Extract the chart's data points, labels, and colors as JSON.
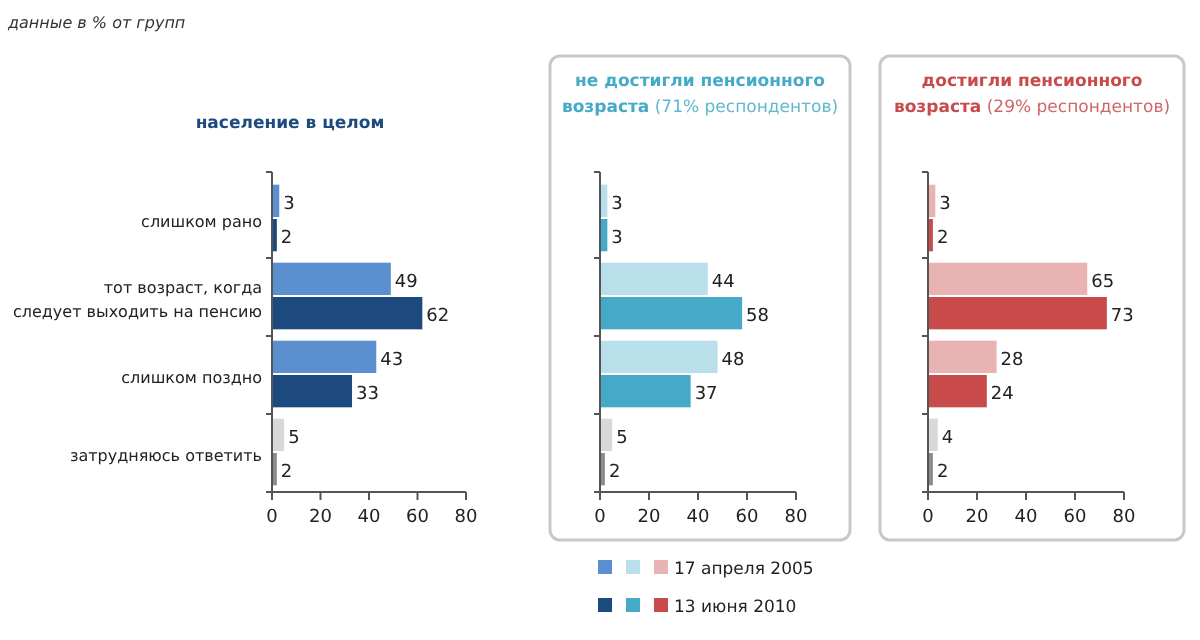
{
  "chart_data": [
    {
      "type": "bar",
      "orientation": "horizontal",
      "title": "население в целом",
      "annotations": [
        "данные в % от групп"
      ],
      "categories": [
        "слишком рано",
        "тот возраст, когда следует выходить на пенсию",
        "слишком поздно",
        "затрудняюсь ответить"
      ],
      "xlim": [
        0,
        80
      ],
      "xticks": [
        0,
        20,
        40,
        60,
        80
      ],
      "data_labels": true,
      "legend": false,
      "series": [
        {
          "colors": [
            "#5b8fd0",
            "#5b8fd0",
            "#5b8fd0",
            "#d9d9d9"
          ],
          "values": [
            3,
            49,
            43,
            5
          ]
        },
        {
          "colors": [
            "#1c4a7e",
            "#1c4a7e",
            "#1c4a7e",
            "#8c8c8c"
          ],
          "values": [
            2,
            62,
            33,
            2
          ]
        }
      ]
    },
    {
      "type": "bar",
      "orientation": "horizontal",
      "title": "не достигли пенсионного возраста",
      "subtitle": "(71% респондентов)",
      "categories": [
        null,
        null,
        null,
        null
      ],
      "tick_labels": "x",
      "xlim": [
        0,
        80
      ],
      "xticks": [
        0,
        20,
        40,
        60,
        80
      ],
      "data_labels": true,
      "legend": false,
      "series": [
        {
          "colors": [
            "#b9e0ea",
            "#b9e0ea",
            "#b9e0ea",
            "#d9d9d9"
          ],
          "values": [
            3,
            44,
            48,
            5
          ]
        },
        {
          "colors": [
            "#45aac8",
            "#45aac8",
            "#45aac8",
            "#8c8c8c"
          ],
          "values": [
            3,
            58,
            37,
            2
          ]
        }
      ]
    },
    {
      "type": "bar",
      "orientation": "horizontal",
      "title": "достигли пенсионного возраста",
      "subtitle": "(29% респондентов)",
      "categories": [
        null,
        null,
        null,
        null
      ],
      "tick_labels": "x",
      "xlim": [
        0,
        80
      ],
      "xticks": [
        0,
        20,
        40,
        60,
        80
      ],
      "data_labels": true,
      "legend": "bottom",
      "series": [
        {
          "name": "17 апреля 2005",
          "colors": [
            "#e9b3b3",
            "#e9b3b3",
            "#e9b3b3",
            "#d9d9d9"
          ],
          "values": [
            3,
            65,
            28,
            4
          ]
        },
        {
          "name": "13 июня 2010",
          "colors": [
            "#c84a4a",
            "#c84a4a",
            "#c84a4a",
            "#8c8c8c"
          ],
          "values": [
            2,
            73,
            24,
            2
          ]
        }
      ]
    }
  ]
}
